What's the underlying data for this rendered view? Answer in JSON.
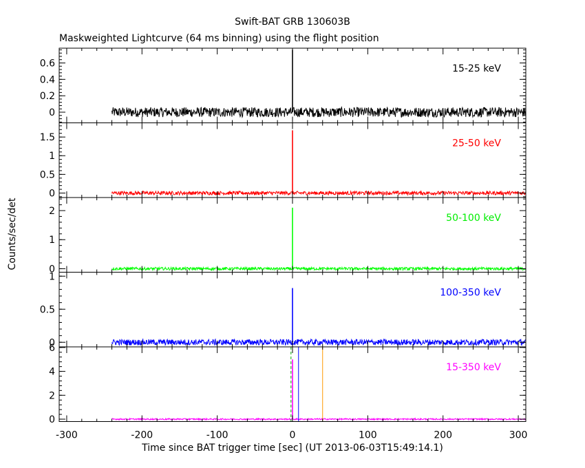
{
  "chart_data": {
    "type": "line",
    "title": "Swift-BAT GRB 130603B",
    "subtitle": "Maskweighted Lightcurve (64 ms binning) using the flight position",
    "xlabel": "Time since BAT trigger time [sec] (UT 2013-06-03T15:49:14.1)",
    "ylabel": "Counts/sec/det",
    "xlim": [
      -310,
      310
    ],
    "xticks": [
      -300,
      -200,
      -100,
      0,
      100,
      200,
      300
    ],
    "data_start": -240,
    "panels": [
      {
        "band": "15-25 keV",
        "color": "#000000",
        "ylim": [
          -0.13,
          0.78
        ],
        "yticks": [
          0,
          0.2,
          0.4,
          0.6
        ],
        "ytick_labels": [
          "0",
          "0.2",
          "0.4",
          "0.6"
        ],
        "noise_amplitude": 0.06,
        "peak": {
          "x": 0,
          "y": 0.76
        }
      },
      {
        "band": "25-50 keV",
        "color": "#ff0000",
        "ylim": [
          -0.12,
          1.88
        ],
        "yticks": [
          0,
          0.5,
          1,
          1.5
        ],
        "ytick_labels": [
          "0",
          "0.5",
          "1",
          "1.5"
        ],
        "noise_amplitude": 0.05,
        "peak": {
          "x": 0,
          "y": 1.68
        }
      },
      {
        "band": "50-100 keV",
        "color": "#00ff00",
        "ylim": [
          -0.12,
          2.45
        ],
        "yticks": [
          0,
          1,
          2
        ],
        "ytick_labels": [
          "0",
          "1",
          "2"
        ],
        "noise_amplitude": 0.05,
        "peak": {
          "x": 0,
          "y": 2.1
        }
      },
      {
        "band": "100-350 keV",
        "color": "#0000ff",
        "ylim": [
          -0.07,
          1.06
        ],
        "yticks": [
          0,
          0.5,
          1
        ],
        "ytick_labels": [
          "0",
          "0.5",
          "1"
        ],
        "noise_amplitude": 0.045,
        "peak": {
          "x": 0,
          "y": 0.82
        }
      },
      {
        "band": "15-350 keV",
        "color": "#ff00ff",
        "ylim": [
          -0.2,
          6.05
        ],
        "yticks": [
          0,
          2,
          4,
          6
        ],
        "ytick_labels": [
          "0",
          "2",
          "4",
          "6"
        ],
        "noise_amplitude": 0.06,
        "peak": {
          "x": 0,
          "y": 5.0
        },
        "marker_lines": [
          {
            "x": -2,
            "color": "#00aa00",
            "dashed": true
          },
          {
            "x": 8,
            "color": "#0000ff",
            "dashed": false
          },
          {
            "x": 40,
            "color": "#ff9900",
            "dashed": false
          }
        ]
      }
    ]
  }
}
